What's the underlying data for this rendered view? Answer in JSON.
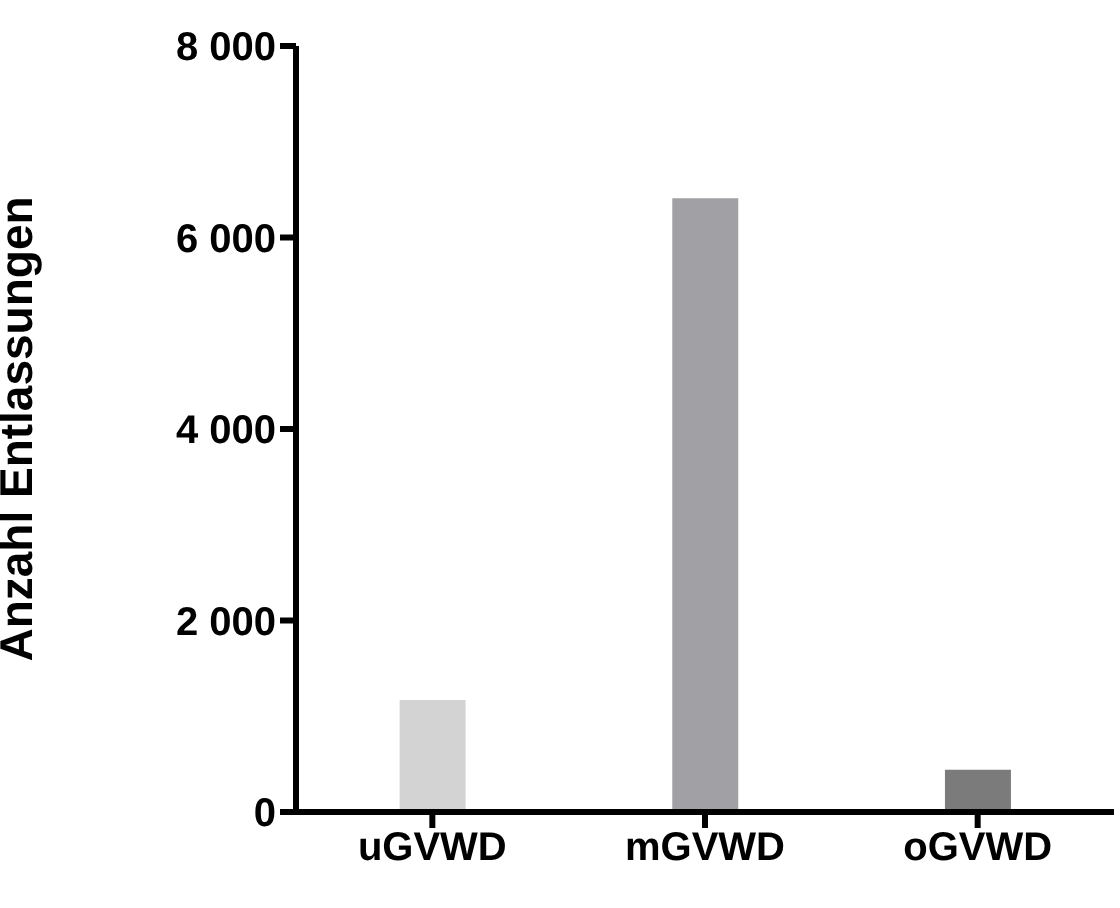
{
  "chart_data": {
    "type": "bar",
    "ylabel": "Anzahl  Entlassungen",
    "categories": [
      "uGVWD",
      "mGVWD",
      "oGVWD"
    ],
    "values": [
      1170,
      6410,
      440
    ],
    "colors": [
      "#d3d3d3",
      "#a1a1a5",
      "#7b7b7b"
    ],
    "ylim": [
      0,
      8000
    ],
    "yticks": [
      {
        "value": 0,
        "label": "0"
      },
      {
        "value": 2000,
        "label": "2 000"
      },
      {
        "value": 4000,
        "label": "4 000"
      },
      {
        "value": 6000,
        "label": "6 000"
      },
      {
        "value": 8000,
        "label": "8 000"
      }
    ],
    "grid": false
  }
}
